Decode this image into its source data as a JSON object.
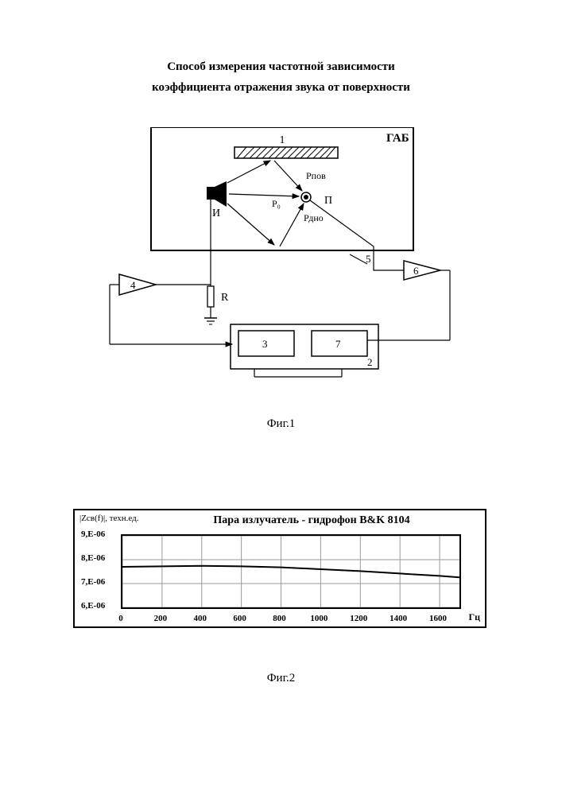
{
  "title_line1": "Способ измерения частотной зависимости",
  "title_line2": "коэффициента отражения звука от поверхности",
  "fig1": {
    "caption": "Фиг.1",
    "labels": {
      "gab": "ГАБ",
      "sample_num": "1",
      "source": "И",
      "receiver": "П",
      "p_pov": "Рпов",
      "p0": "Р₀",
      "p_dno": "Рдно",
      "r": "R",
      "block2": "2",
      "block3": "3",
      "block4": "4",
      "wire5": "5",
      "block6": "6",
      "block7": "7"
    },
    "colors": {
      "line": "#000000",
      "hatch": "#444444"
    }
  },
  "fig2": {
    "caption": "Фиг.2",
    "type": "line",
    "title": "Пара излучатель - гидрофон B&K 8104",
    "ylabel_top1": "|Zсв(f)|, техн.ед.",
    "ylim": [
      6e-06,
      9e-06
    ],
    "yticks": [
      "6,Е-06",
      "7,Е-06",
      "8,Е-06",
      "9,Е-06"
    ],
    "yticks_vals": [
      6e-06,
      7e-06,
      8e-06,
      9e-06
    ],
    "xlim": [
      0,
      1700
    ],
    "xticks": [
      0,
      200,
      400,
      600,
      800,
      1000,
      1200,
      1400,
      1600
    ],
    "xunit": "Гц",
    "series": {
      "color": "#000000",
      "width": 2,
      "x": [
        0,
        200,
        400,
        600,
        800,
        1000,
        1200,
        1400,
        1600,
        1700
      ],
      "y": [
        7.7e-06,
        7.72e-06,
        7.74e-06,
        7.72e-06,
        7.68e-06,
        7.6e-06,
        7.52e-06,
        7.42e-06,
        7.32e-06,
        7.26e-06
      ]
    },
    "grid_color": "#999999",
    "background_color": "#ffffff",
    "title_fontsize": 14,
    "tick_fontsize": 11
  }
}
